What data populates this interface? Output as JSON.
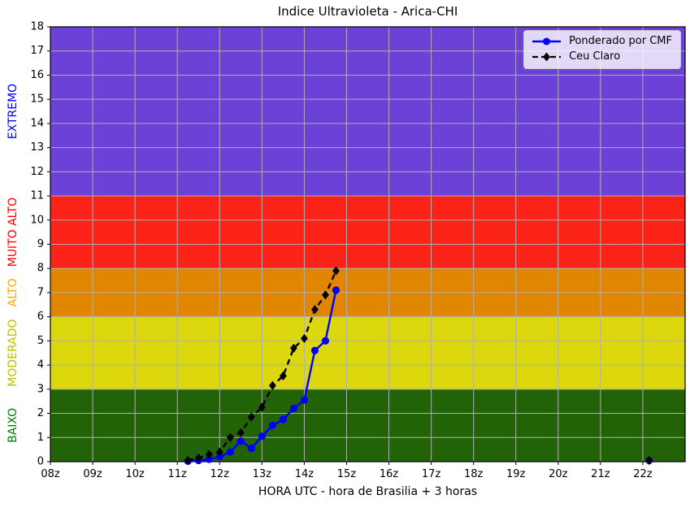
{
  "figure": {
    "title": "Indice Ultravioleta - Arica-CHI"
  },
  "chart_data": {
    "type": "line",
    "title": "Indice Ultravioleta - Arica-CHI",
    "xlabel": "HORA UTC - hora de Brasilia + 3 horas",
    "ylabel": "",
    "xlim": [
      8,
      23
    ],
    "ylim": [
      0,
      18
    ],
    "grid": true,
    "legend_position": "upper right",
    "x_ticks": [
      {
        "value": 8,
        "label": "08z"
      },
      {
        "value": 9,
        "label": "09z"
      },
      {
        "value": 10,
        "label": "10z"
      },
      {
        "value": 11,
        "label": "11z"
      },
      {
        "value": 12,
        "label": "12z"
      },
      {
        "value": 13,
        "label": "13z"
      },
      {
        "value": 14,
        "label": "14z"
      },
      {
        "value": 15,
        "label": "15z"
      },
      {
        "value": 16,
        "label": "16z"
      },
      {
        "value": 17,
        "label": "17z"
      },
      {
        "value": 18,
        "label": "18z"
      },
      {
        "value": 19,
        "label": "19z"
      },
      {
        "value": 20,
        "label": "20z"
      },
      {
        "value": 21,
        "label": "21z"
      },
      {
        "value": 22,
        "label": "22z"
      }
    ],
    "y_ticks": [
      0,
      1,
      2,
      3,
      4,
      5,
      6,
      7,
      8,
      9,
      10,
      11,
      12,
      13,
      14,
      15,
      16,
      17,
      18
    ],
    "bands": [
      {
        "id": "baixo",
        "label": "BAIXO",
        "from": 0,
        "to": 3,
        "fill": "#226307",
        "label_color": "#008000"
      },
      {
        "id": "moderado",
        "label": "MODERADO",
        "from": 3,
        "to": 6,
        "fill": "#ddd70d",
        "label_color": "#c0c000"
      },
      {
        "id": "alto",
        "label": "ALTO",
        "from": 6,
        "to": 8,
        "fill": "#e08600",
        "label_color": "#ffa500"
      },
      {
        "id": "muito-alto",
        "label": "MUITO ALTO",
        "from": 8,
        "to": 11,
        "fill": "#fb2318",
        "label_color": "#ff0000"
      },
      {
        "id": "extremo",
        "label": "EXTREMO",
        "from": 11,
        "to": 18,
        "fill": "#6b41d8",
        "label_color": "#0000ff"
      }
    ],
    "series": [
      {
        "id": "cmf",
        "name": "Ponderado por CMF",
        "color": "#0000ff",
        "marker": "circle",
        "dashed": false,
        "points": [
          [
            11.25,
            0.02
          ],
          [
            11.5,
            0.05
          ],
          [
            11.75,
            0.1
          ],
          [
            12.0,
            0.2
          ],
          [
            12.25,
            0.4
          ],
          [
            12.5,
            0.85
          ],
          [
            12.75,
            0.55
          ],
          [
            13.0,
            1.05
          ],
          [
            13.25,
            1.5
          ],
          [
            13.5,
            1.75
          ],
          [
            13.75,
            2.2
          ],
          [
            14.0,
            2.55
          ],
          [
            14.25,
            4.6
          ],
          [
            14.5,
            5.0
          ],
          [
            14.75,
            7.1
          ],
          [
            22.15,
            0.05
          ]
        ]
      },
      {
        "id": "ceu-claro",
        "name": "Ceu Claro",
        "color": "#000000",
        "marker": "diamond",
        "dashed": true,
        "points": [
          [
            11.25,
            0.05
          ],
          [
            11.5,
            0.15
          ],
          [
            11.75,
            0.3
          ],
          [
            12.0,
            0.4
          ],
          [
            12.25,
            1.0
          ],
          [
            12.5,
            1.2
          ],
          [
            12.75,
            1.85
          ],
          [
            13.0,
            2.25
          ],
          [
            13.25,
            3.15
          ],
          [
            13.5,
            3.55
          ],
          [
            13.75,
            4.7
          ],
          [
            14.0,
            5.1
          ],
          [
            14.25,
            6.3
          ],
          [
            14.5,
            6.9
          ],
          [
            14.75,
            7.9
          ],
          [
            22.15,
            0.05
          ]
        ]
      }
    ],
    "gap_threshold_hours": 1
  },
  "colors": {
    "grid": "#b0b0b0",
    "axis": "#000000",
    "background": "#ffffff",
    "legend_border": "#cccccc"
  }
}
